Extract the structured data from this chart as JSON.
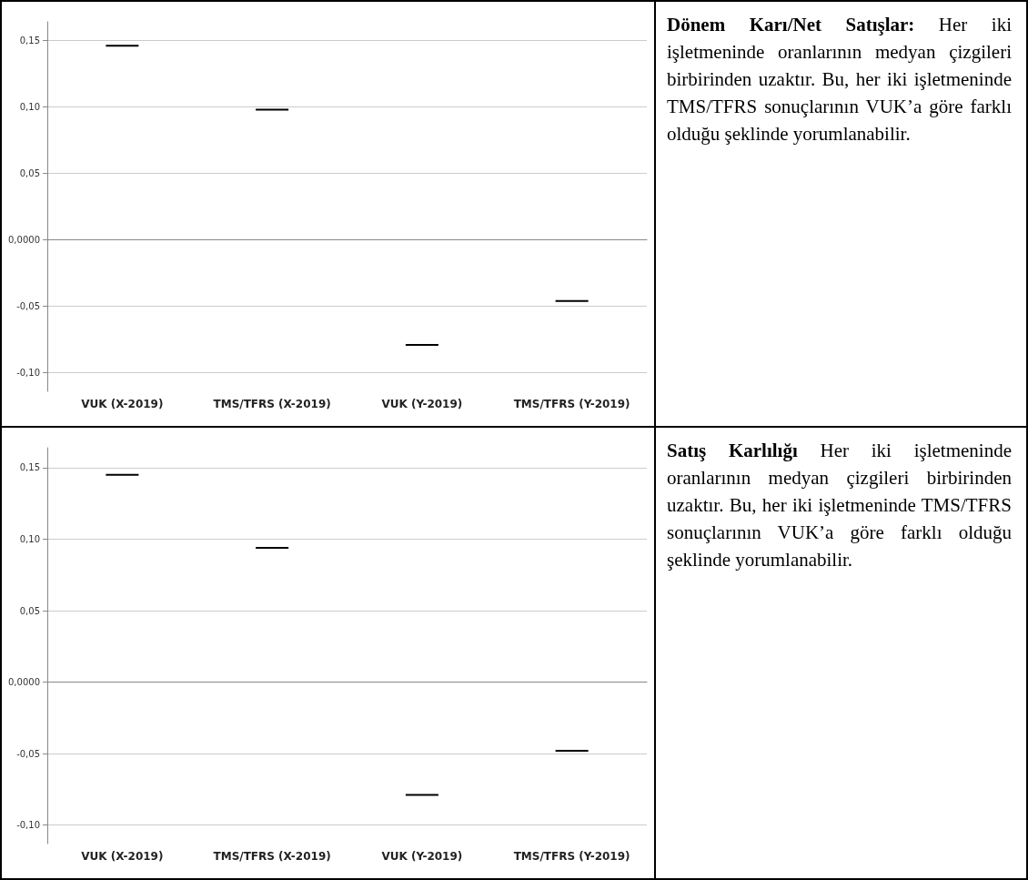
{
  "chart_data": [
    {
      "type": "box",
      "categories": [
        "VUK (X-2019)",
        "TMS/TFRS (X-2019)",
        "VUK (Y-2019)",
        "TMS/TFRS (Y-2019)"
      ],
      "color": "#000000",
      "boxes": [
        {
          "low": 0.146,
          "q1": 0.146,
          "median": 0.146,
          "q3": 0.146,
          "high": 0.146
        },
        {
          "low": 0.098,
          "q1": 0.098,
          "median": 0.098,
          "q3": 0.098,
          "high": 0.098
        },
        {
          "low": -0.079,
          "q1": -0.079,
          "median": -0.079,
          "q3": -0.079,
          "high": -0.079
        },
        {
          "low": -0.046,
          "q1": -0.046,
          "median": -0.046,
          "q3": -0.046,
          "high": -0.046
        }
      ],
      "ylim": [
        -0.114,
        0.164
      ],
      "yticks": [
        {
          "value": -0.1,
          "label": "-0,10"
        },
        {
          "value": -0.05,
          "label": "-0,05"
        },
        {
          "value": 0,
          "label": "0,0000"
        },
        {
          "value": 0.05,
          "label": "0,05"
        },
        {
          "value": 0.1,
          "label": "0,10"
        },
        {
          "value": 0.15,
          "label": "0,15"
        }
      ],
      "grid": "y"
    },
    {
      "type": "other",
      "title": "Dönem Karı/Net Satışlar:",
      "annotations": [
        "Her iki işletmeninde oranlarının medyan çizgileri birbirinden uzaktır. Bu, her iki işletmeninde TMS/TFRS sonuçlarının VUK’a göre farklı olduğu şeklinde yorumlanabilir."
      ]
    },
    {
      "type": "box",
      "categories": [
        "VUK (X-2019)",
        "TMS/TFRS (X-2019)",
        "VUK (Y-2019)",
        "TMS/TFRS (Y-2019)"
      ],
      "color": "#000000",
      "boxes": [
        {
          "low": 0.145,
          "q1": 0.145,
          "median": 0.145,
          "q3": 0.145,
          "high": 0.145
        },
        {
          "low": 0.094,
          "q1": 0.094,
          "median": 0.094,
          "q3": 0.094,
          "high": 0.094
        },
        {
          "low": -0.079,
          "q1": -0.079,
          "median": -0.079,
          "q3": -0.079,
          "high": -0.079
        },
        {
          "low": -0.048,
          "q1": -0.048,
          "median": -0.048,
          "q3": -0.048,
          "high": -0.048
        }
      ],
      "ylim": [
        -0.113,
        0.164
      ],
      "yticks": [
        {
          "value": -0.1,
          "label": "-0,10"
        },
        {
          "value": -0.05,
          "label": "-0,05"
        },
        {
          "value": 0,
          "label": "0,0000"
        },
        {
          "value": 0.05,
          "label": "0,05"
        },
        {
          "value": 0.1,
          "label": "0,10"
        },
        {
          "value": 0.15,
          "label": "0,15"
        }
      ],
      "grid": "y"
    },
    {
      "type": "other",
      "title": "Satış Karlılığı",
      "annotations": [
        "Her iki işletmeninde oranlarının medyan çizgileri birbirinden uzaktır. Bu, her iki işletmeninde TMS/TFRS sonuçlarının VUK’a göre farklı olduğu şeklinde yorumlanabilir."
      ]
    }
  ]
}
